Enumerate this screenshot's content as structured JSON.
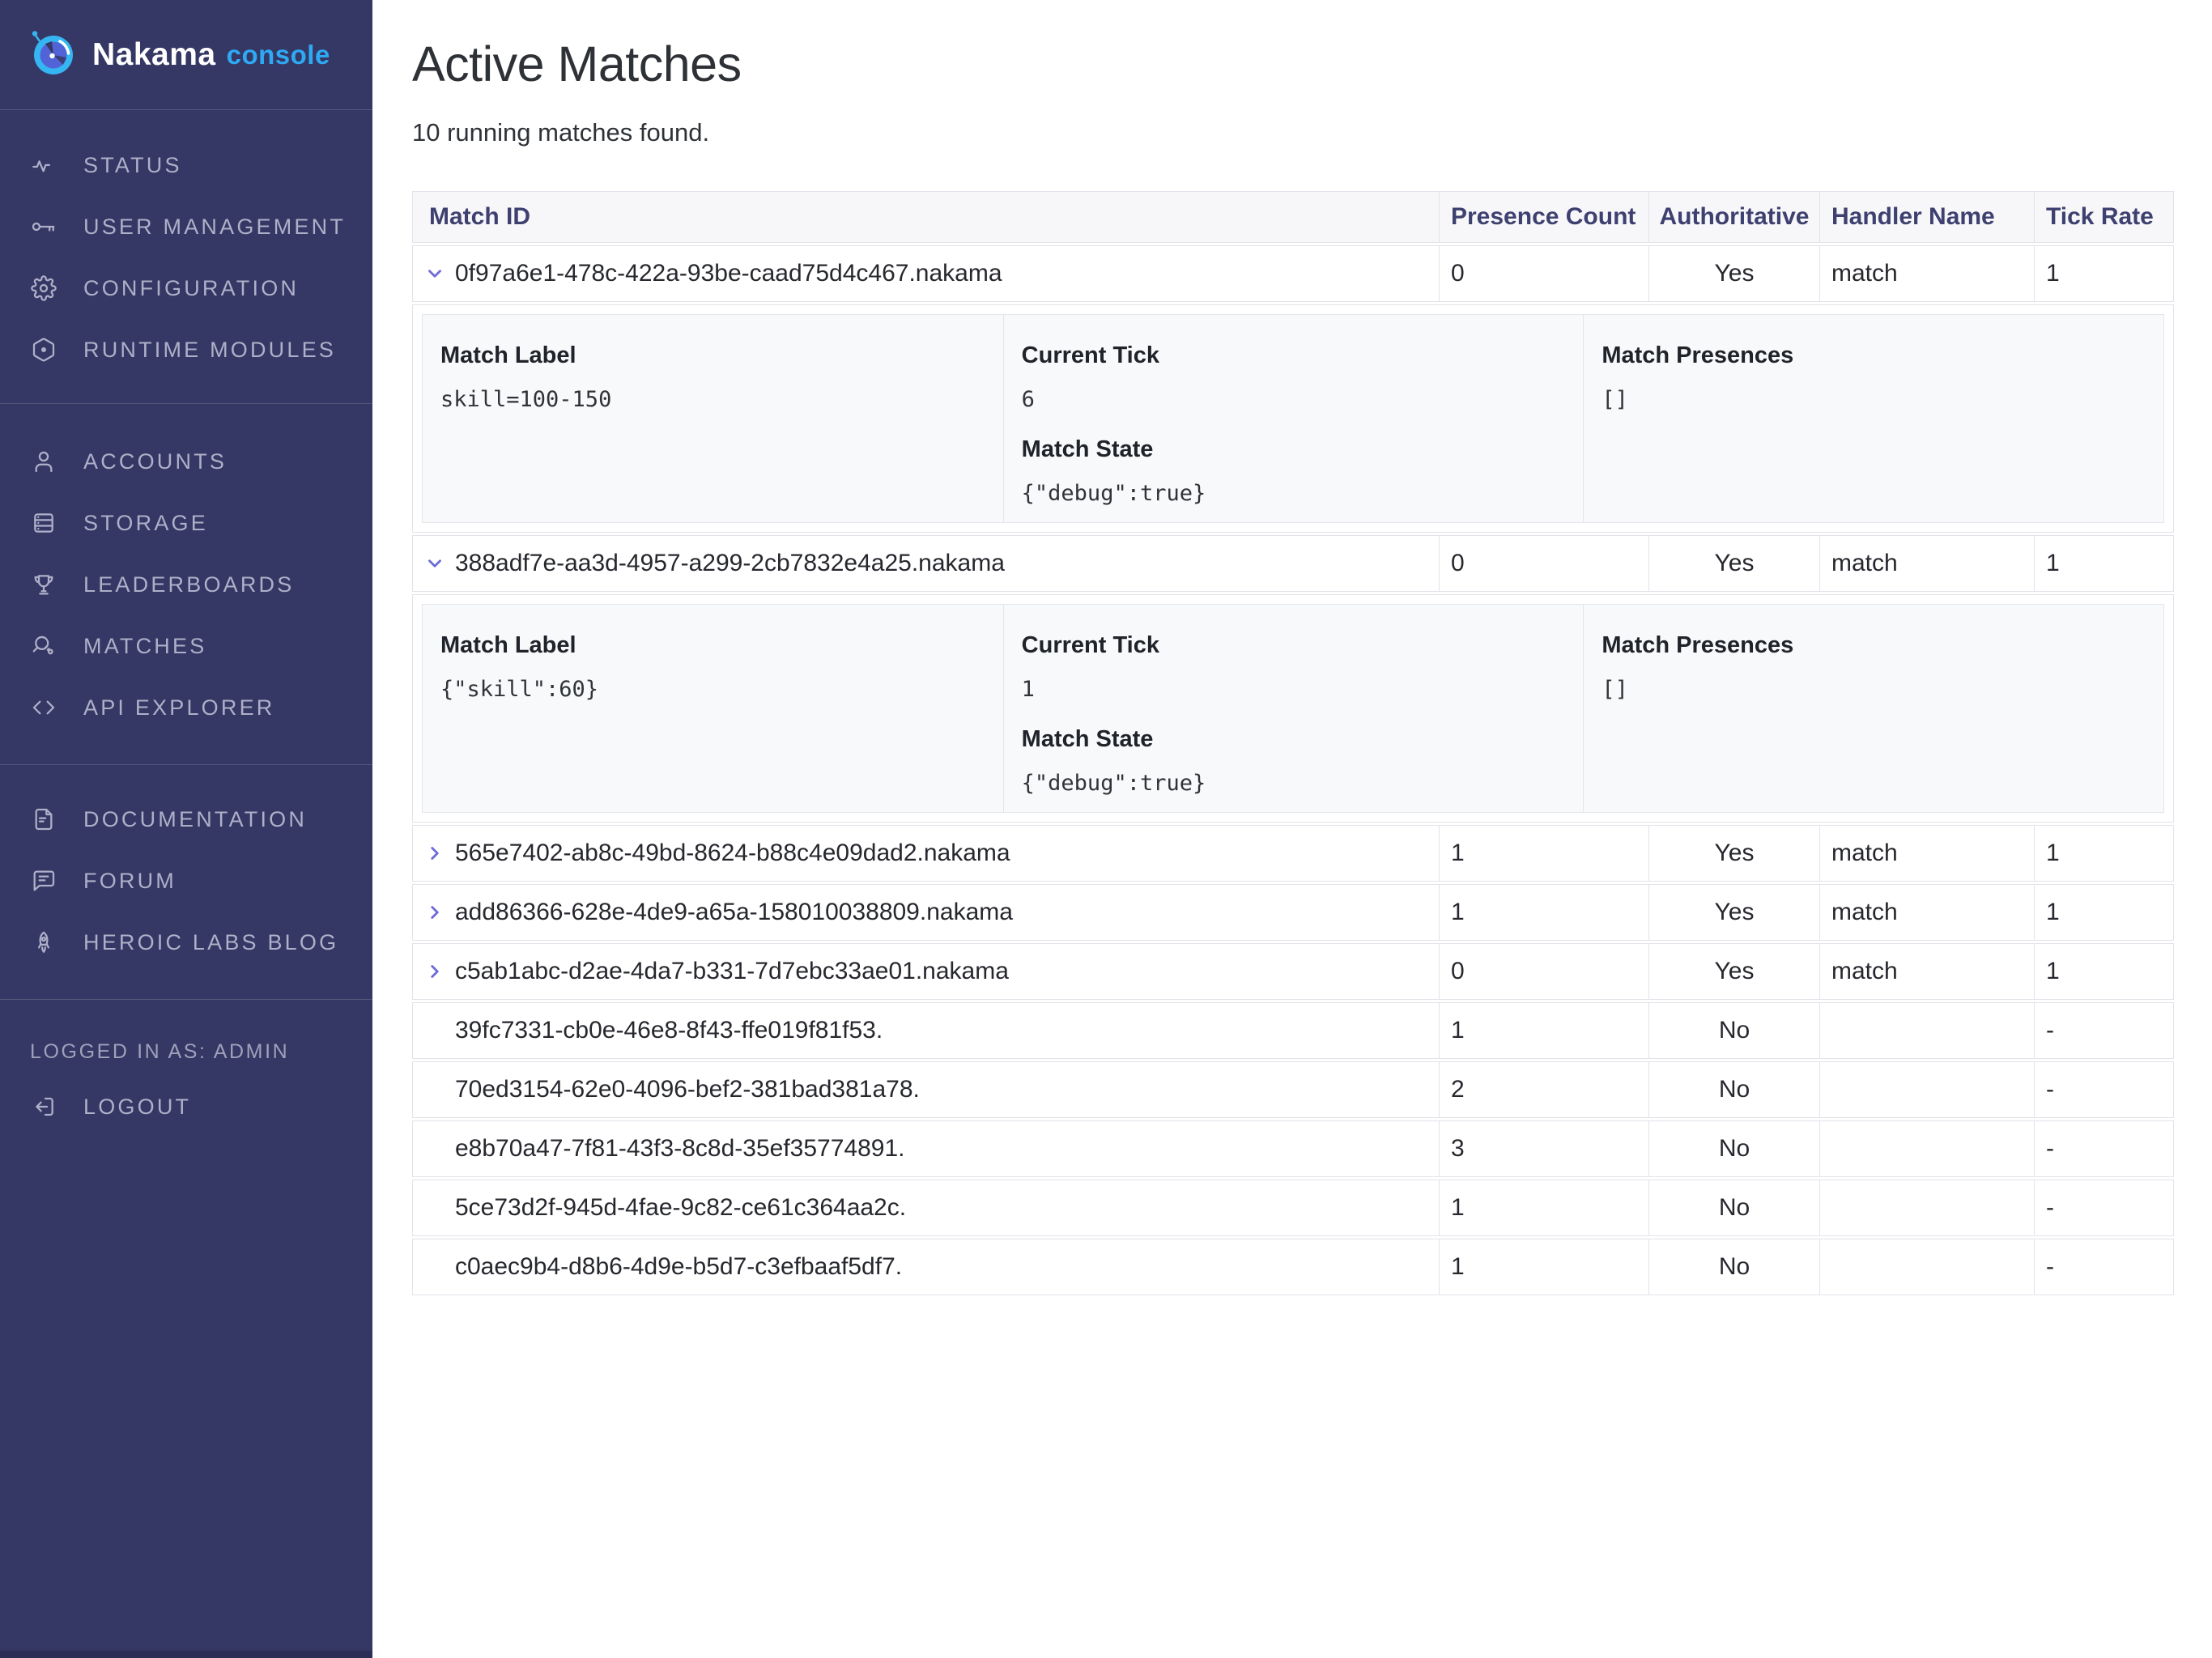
{
  "colors": {
    "sidebar_bg": "#353764",
    "accent_blue": "#2ea9f4",
    "header_text": "#3e4070",
    "chevron_purple": "#6e6bd8",
    "table_border": "#e2e3ea",
    "detail_panel_bg": "#f8f9fb"
  },
  "sidebar": {
    "logo": {
      "name": "Nakama",
      "suffix": "console",
      "icon": "nakama-logo-icon"
    },
    "sections": [
      {
        "items": [
          {
            "icon": "activity-icon",
            "label": "STATUS"
          },
          {
            "icon": "key-icon",
            "label": "USER MANAGEMENT"
          },
          {
            "icon": "gear-icon",
            "label": "CONFIGURATION"
          },
          {
            "icon": "hexagon-icon",
            "label": "RUNTIME MODULES"
          }
        ]
      },
      {
        "items": [
          {
            "icon": "user-icon",
            "label": "ACCOUNTS"
          },
          {
            "icon": "server-icon",
            "label": "STORAGE"
          },
          {
            "icon": "trophy-icon",
            "label": "LEADERBOARDS"
          },
          {
            "icon": "paddle-icon",
            "label": "MATCHES"
          },
          {
            "icon": "code-icon",
            "label": "API EXPLORER"
          }
        ]
      },
      {
        "items": [
          {
            "icon": "document-icon",
            "label": "DOCUMENTATION"
          },
          {
            "icon": "chat-icon",
            "label": "FORUM"
          },
          {
            "icon": "rocket-icon",
            "label": "HEROIC LABS BLOG"
          }
        ]
      },
      {
        "items": [
          {
            "type": "label",
            "label": "LOGGED IN AS: ADMIN"
          },
          {
            "icon": "logout-icon",
            "label": "LOGOUT"
          }
        ]
      }
    ]
  },
  "header": {
    "title": "Active Matches",
    "subtitle": "10 running matches found."
  },
  "detail_labels": {
    "match_label": "Match Label",
    "current_tick": "Current Tick",
    "match_state": "Match State",
    "match_presences": "Match Presences"
  },
  "table": {
    "columns": [
      "Match ID",
      "Presence Count",
      "Authoritative",
      "Handler Name",
      "Tick Rate"
    ],
    "rows": [
      {
        "match_id": "0f97a6e1-478c-422a-93be-caad75d4c467.nakama",
        "presence_count": "0",
        "authoritative": "Yes",
        "handler_name": "match",
        "tick_rate": "1",
        "chevron": "down",
        "expanded": true,
        "detail": {
          "match_label": "skill=100-150",
          "current_tick": "6",
          "match_state": "{\"debug\":true}",
          "match_presences": "[]"
        }
      },
      {
        "match_id": "388adf7e-aa3d-4957-a299-2cb7832e4a25.nakama",
        "presence_count": "0",
        "authoritative": "Yes",
        "handler_name": "match",
        "tick_rate": "1",
        "chevron": "down",
        "expanded": true,
        "detail": {
          "match_label": "{\"skill\":60}",
          "current_tick": "1",
          "match_state": "{\"debug\":true}",
          "match_presences": "[]"
        }
      },
      {
        "match_id": "565e7402-ab8c-49bd-8624-b88c4e09dad2.nakama",
        "presence_count": "1",
        "authoritative": "Yes",
        "handler_name": "match",
        "tick_rate": "1",
        "chevron": "right",
        "expanded": false
      },
      {
        "match_id": "add86366-628e-4de9-a65a-158010038809.nakama",
        "presence_count": "1",
        "authoritative": "Yes",
        "handler_name": "match",
        "tick_rate": "1",
        "chevron": "right",
        "expanded": false
      },
      {
        "match_id": "c5ab1abc-d2ae-4da7-b331-7d7ebc33ae01.nakama",
        "presence_count": "0",
        "authoritative": "Yes",
        "handler_name": "match",
        "tick_rate": "1",
        "chevron": "right",
        "expanded": false
      },
      {
        "match_id": "39fc7331-cb0e-46e8-8f43-ffe019f81f53.",
        "presence_count": "1",
        "authoritative": "No",
        "handler_name": "",
        "tick_rate": "-",
        "chevron": "none",
        "expanded": false
      },
      {
        "match_id": "70ed3154-62e0-4096-bef2-381bad381a78.",
        "presence_count": "2",
        "authoritative": "No",
        "handler_name": "",
        "tick_rate": "-",
        "chevron": "none",
        "expanded": false
      },
      {
        "match_id": "e8b70a47-7f81-43f3-8c8d-35ef35774891.",
        "presence_count": "3",
        "authoritative": "No",
        "handler_name": "",
        "tick_rate": "-",
        "chevron": "none",
        "expanded": false
      },
      {
        "match_id": "5ce73d2f-945d-4fae-9c82-ce61c364aa2c.",
        "presence_count": "1",
        "authoritative": "No",
        "handler_name": "",
        "tick_rate": "-",
        "chevron": "none",
        "expanded": false
      },
      {
        "match_id": "c0aec9b4-d8b6-4d9e-b5d7-c3efbaaf5df7.",
        "presence_count": "1",
        "authoritative": "No",
        "handler_name": "",
        "tick_rate": "-",
        "chevron": "none",
        "expanded": false
      }
    ]
  }
}
